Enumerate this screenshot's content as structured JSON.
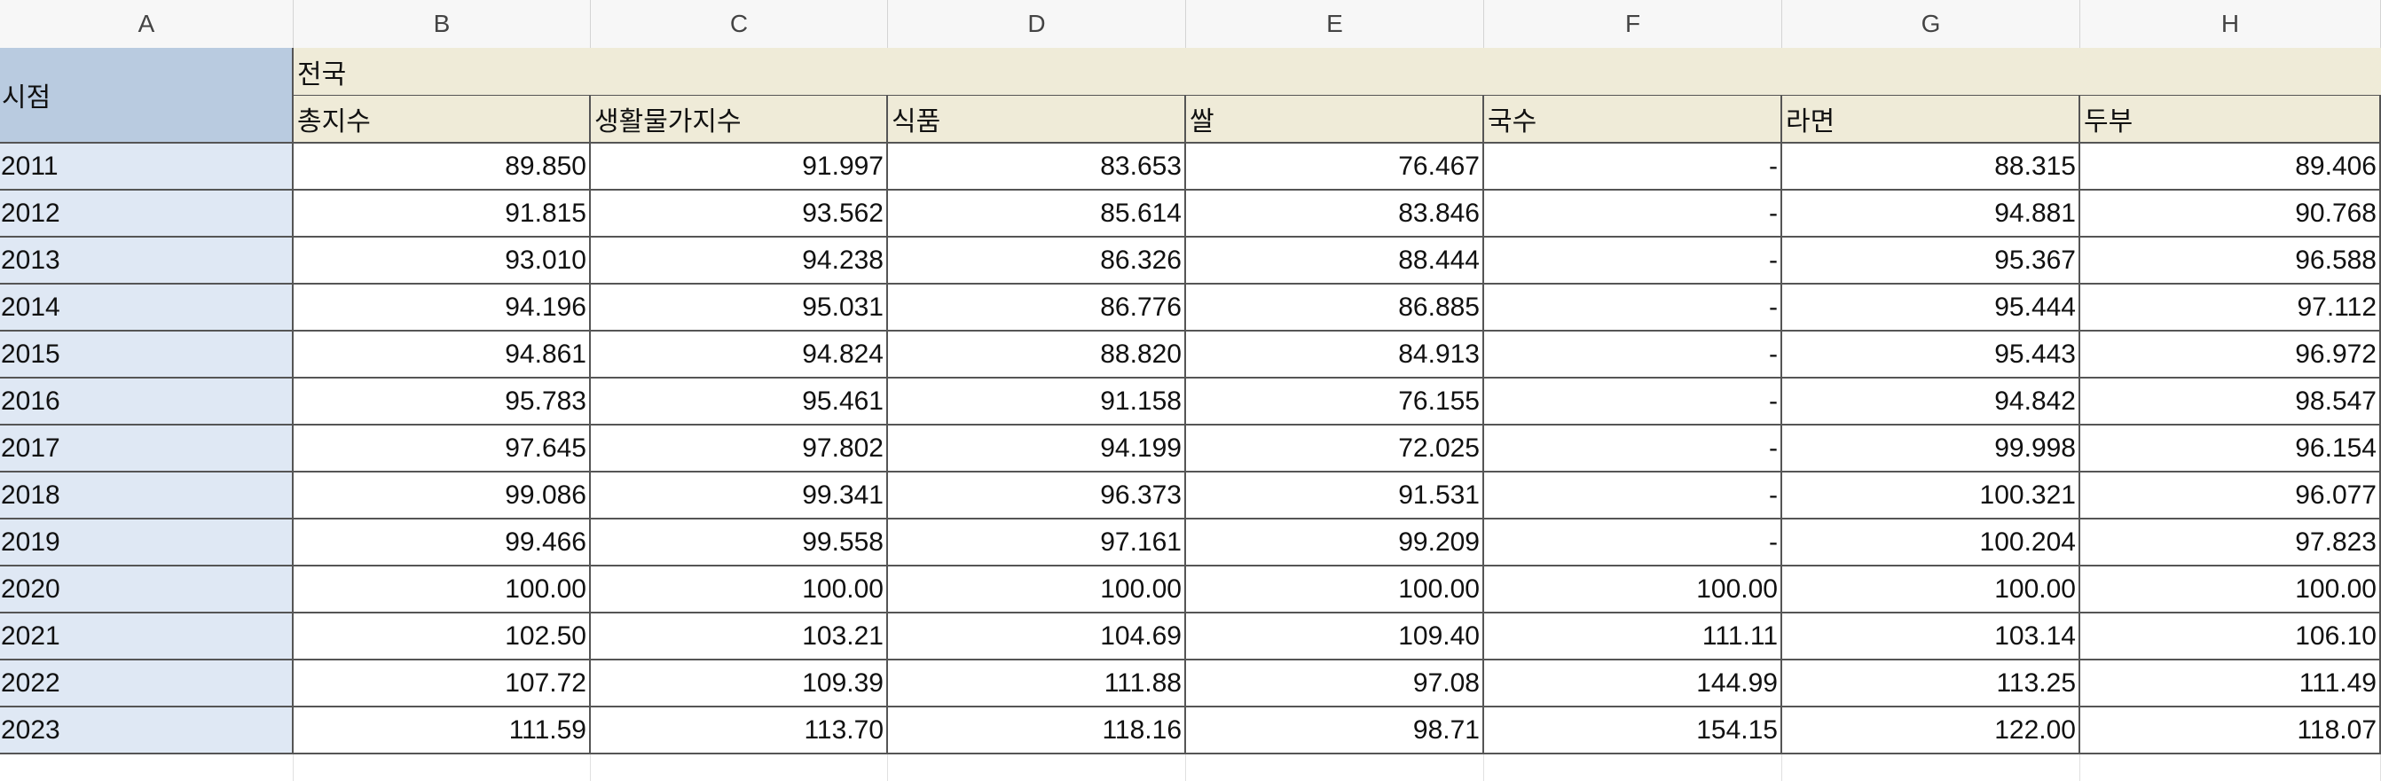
{
  "columns": [
    "A",
    "B",
    "C",
    "D",
    "E",
    "F",
    "G",
    "H"
  ],
  "header": {
    "a_label": "시점",
    "group_label": "전국",
    "sub_labels": [
      "총지수",
      "생활물가지수",
      "식품",
      "쌀",
      "국수",
      "라면",
      "두부"
    ]
  },
  "rows": [
    {
      "year": "2011",
      "values": [
        "89.850",
        "91.997",
        "83.653",
        "76.467",
        "-",
        "88.315",
        "89.406"
      ]
    },
    {
      "year": "2012",
      "values": [
        "91.815",
        "93.562",
        "85.614",
        "83.846",
        "-",
        "94.881",
        "90.768"
      ]
    },
    {
      "year": "2013",
      "values": [
        "93.010",
        "94.238",
        "86.326",
        "88.444",
        "-",
        "95.367",
        "96.588"
      ]
    },
    {
      "year": "2014",
      "values": [
        "94.196",
        "95.031",
        "86.776",
        "86.885",
        "-",
        "95.444",
        "97.112"
      ]
    },
    {
      "year": "2015",
      "values": [
        "94.861",
        "94.824",
        "88.820",
        "84.913",
        "-",
        "95.443",
        "96.972"
      ]
    },
    {
      "year": "2016",
      "values": [
        "95.783",
        "95.461",
        "91.158",
        "76.155",
        "-",
        "94.842",
        "98.547"
      ]
    },
    {
      "year": "2017",
      "values": [
        "97.645",
        "97.802",
        "94.199",
        "72.025",
        "-",
        "99.998",
        "96.154"
      ]
    },
    {
      "year": "2018",
      "values": [
        "99.086",
        "99.341",
        "96.373",
        "91.531",
        "-",
        "100.321",
        "96.077"
      ]
    },
    {
      "year": "2019",
      "values": [
        "99.466",
        "99.558",
        "97.161",
        "99.209",
        "-",
        "100.204",
        "97.823"
      ]
    },
    {
      "year": "2020",
      "values": [
        "100.00",
        "100.00",
        "100.00",
        "100.00",
        "100.00",
        "100.00",
        "100.00"
      ]
    },
    {
      "year": "2021",
      "values": [
        "102.50",
        "103.21",
        "104.69",
        "109.40",
        "111.11",
        "103.14",
        "106.10"
      ]
    },
    {
      "year": "2022",
      "values": [
        "107.72",
        "109.39",
        "111.88",
        "97.08",
        "144.99",
        "113.25",
        "111.49"
      ]
    },
    {
      "year": "2023",
      "values": [
        "111.59",
        "113.70",
        "118.16",
        "98.71",
        "154.15",
        "122.00",
        "118.07"
      ]
    }
  ]
}
